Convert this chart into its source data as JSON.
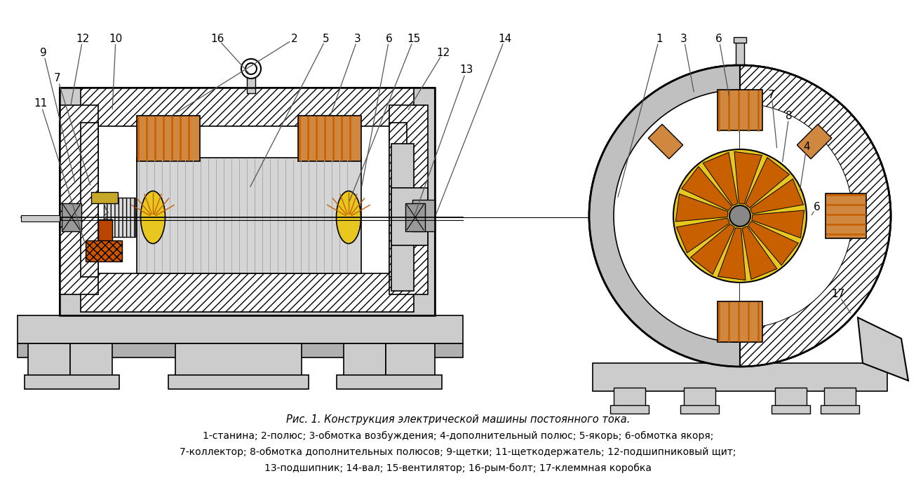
{
  "caption_line1": "Рис. 1. Конструкция электрической машины постоянного тока.",
  "caption_line2": "1-станина; 2-полюс; 3-обмотка возбуждения; 4-дополнительный полюс; 5-якорь; 6-обмотка якоря;",
  "caption_line3": "7-коллектор; 8-обмотка дополнительных полюсов; 9-щетки; 11-щеткодержатель; 12-подшипниковый щит;",
  "caption_line4": "13-подшипник; 14-вал; 15-вентилятор; 16-рым-болт; 17-клеммная коробка",
  "bg_color": "#ffffff",
  "lc": "#000000",
  "gc": "#cccccc",
  "gc2": "#b0b0b0",
  "oc": "#c86000",
  "ol": "#d08840",
  "yc": "#e8c820",
  "hatch_fc": "#ffffff",
  "label_color": "#000000",
  "caption_color": "#000000",
  "fs_label": 11,
  "fs_caption": 10
}
